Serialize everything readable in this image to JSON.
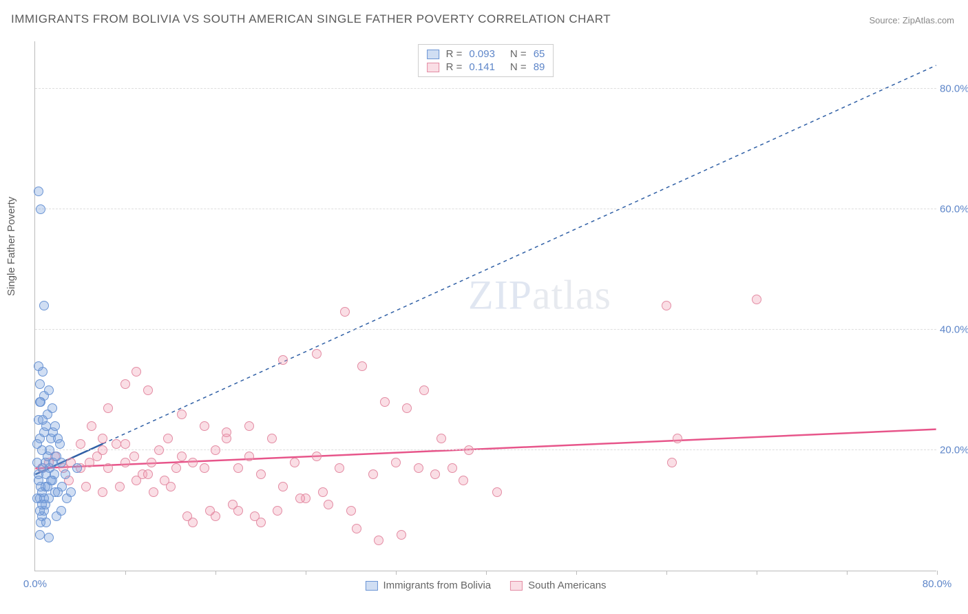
{
  "title": "IMMIGRANTS FROM BOLIVIA VS SOUTH AMERICAN SINGLE FATHER POVERTY CORRELATION CHART",
  "source": "Source: ZipAtlas.com",
  "ylabel": "Single Father Poverty",
  "watermark_a": "ZIP",
  "watermark_b": "atlas",
  "chart": {
    "type": "scatter",
    "xlim": [
      0,
      80
    ],
    "ylim": [
      0,
      88
    ],
    "background_color": "#ffffff",
    "grid_color": "#dddddd",
    "yticks": [
      20,
      40,
      60,
      80
    ],
    "xtick_marks": [
      8,
      16,
      24,
      32,
      40,
      48,
      56,
      64,
      72,
      80
    ],
    "xtick_labels": [
      {
        "pos": 0,
        "text": "0.0%"
      },
      {
        "pos": 80,
        "text": "80.0%"
      }
    ],
    "series": [
      {
        "name": "Immigrants from Bolivia",
        "marker_fill": "rgba(120,160,220,0.35)",
        "marker_stroke": "#6a94d4",
        "trend_color": "#2f5fa5",
        "trend_dash": "5,5",
        "trend": {
          "x1": 0,
          "y1": 16,
          "x2": 80,
          "y2": 84
        },
        "trend_solid_end_x": 6,
        "points": [
          [
            0.3,
            16
          ],
          [
            0.5,
            14
          ],
          [
            0.4,
            12
          ],
          [
            0.8,
            10
          ],
          [
            0.6,
            9
          ],
          [
            0.5,
            8
          ],
          [
            1.0,
            8
          ],
          [
            0.4,
            6
          ],
          [
            1.2,
            5.5
          ],
          [
            0.3,
            15
          ],
          [
            0.7,
            17
          ],
          [
            0.9,
            18
          ],
          [
            1.1,
            19
          ],
          [
            1.3,
            20
          ],
          [
            0.2,
            18
          ],
          [
            0.6,
            20
          ],
          [
            1.4,
            22
          ],
          [
            1.6,
            23
          ],
          [
            1.8,
            24
          ],
          [
            2.0,
            22
          ],
          [
            2.2,
            21
          ],
          [
            0.4,
            22
          ],
          [
            0.8,
            23
          ],
          [
            1.0,
            24
          ],
          [
            0.3,
            25
          ],
          [
            1.1,
            26
          ],
          [
            1.5,
            27
          ],
          [
            0.5,
            28
          ],
          [
            0.8,
            29
          ],
          [
            1.2,
            30
          ],
          [
            0.4,
            31
          ],
          [
            0.7,
            33
          ],
          [
            0.3,
            34
          ],
          [
            0.9,
            11
          ],
          [
            1.5,
            15
          ],
          [
            1.8,
            13
          ],
          [
            2.4,
            14
          ],
          [
            2.8,
            12
          ],
          [
            3.2,
            13
          ],
          [
            3.7,
            17
          ],
          [
            1.2,
            12
          ],
          [
            1.9,
            9
          ],
          [
            2.3,
            10
          ],
          [
            2.7,
            16
          ],
          [
            0.2,
            21
          ],
          [
            0.6,
            13
          ],
          [
            0.9,
            14
          ],
          [
            0.3,
            63
          ],
          [
            0.5,
            60
          ],
          [
            0.8,
            44
          ],
          [
            0.4,
            28
          ],
          [
            0.7,
            25
          ],
          [
            1.0,
            16
          ],
          [
            1.3,
            17
          ],
          [
            1.6,
            18
          ],
          [
            1.9,
            19
          ],
          [
            0.2,
            12
          ],
          [
            0.4,
            10
          ],
          [
            0.6,
            11
          ],
          [
            0.8,
            12
          ],
          [
            1.1,
            14
          ],
          [
            1.4,
            15
          ],
          [
            1.7,
            16
          ],
          [
            2.0,
            13
          ],
          [
            2.3,
            18
          ]
        ]
      },
      {
        "name": "South Americans",
        "marker_fill": "rgba(240,160,180,0.35)",
        "marker_stroke": "#e38ba3",
        "trend_color": "#e7558a",
        "trend_dash": "",
        "trend": {
          "x1": 0,
          "y1": 17,
          "x2": 80,
          "y2": 23.5
        },
        "trend_solid_end_x": 80,
        "points": [
          [
            0.6,
            17
          ],
          [
            1.2,
            18
          ],
          [
            1.8,
            19
          ],
          [
            2.5,
            17
          ],
          [
            3.2,
            18
          ],
          [
            4.0,
            17
          ],
          [
            4.8,
            18
          ],
          [
            5.5,
            19
          ],
          [
            6.0,
            22
          ],
          [
            6.5,
            17
          ],
          [
            7.2,
            21
          ],
          [
            8.0,
            18
          ],
          [
            8.8,
            19
          ],
          [
            9.5,
            16
          ],
          [
            10.3,
            18
          ],
          [
            11.0,
            20
          ],
          [
            11.8,
            22
          ],
          [
            12.5,
            17
          ],
          [
            3.0,
            15
          ],
          [
            4.5,
            14
          ],
          [
            6.0,
            13
          ],
          [
            7.5,
            14
          ],
          [
            9.0,
            15
          ],
          [
            10.5,
            13
          ],
          [
            12.0,
            14
          ],
          [
            5.0,
            24
          ],
          [
            6.5,
            27
          ],
          [
            8.0,
            31
          ],
          [
            9.0,
            33
          ],
          [
            10.0,
            16
          ],
          [
            11.5,
            15
          ],
          [
            13.0,
            19
          ],
          [
            14.0,
            18
          ],
          [
            15.0,
            17
          ],
          [
            16.0,
            20
          ],
          [
            17.0,
            22
          ],
          [
            18.0,
            17
          ],
          [
            19.0,
            19
          ],
          [
            20.0,
            16
          ],
          [
            22.0,
            14
          ],
          [
            24.0,
            12
          ],
          [
            26.0,
            11
          ],
          [
            28.0,
            10
          ],
          [
            30.0,
            16
          ],
          [
            14.0,
            8
          ],
          [
            16.0,
            9
          ],
          [
            18.0,
            10
          ],
          [
            20.0,
            8
          ],
          [
            22.0,
            35
          ],
          [
            29.0,
            34
          ],
          [
            31.0,
            28
          ],
          [
            33.0,
            27
          ],
          [
            34.5,
            30
          ],
          [
            37.0,
            17
          ],
          [
            38.0,
            15
          ],
          [
            28.5,
            7
          ],
          [
            30.5,
            5
          ],
          [
            32.5,
            6
          ],
          [
            19.0,
            24
          ],
          [
            21.0,
            22
          ],
          [
            23.0,
            18
          ],
          [
            25.0,
            19
          ],
          [
            27.0,
            17
          ],
          [
            13.0,
            26
          ],
          [
            15.0,
            24
          ],
          [
            17.0,
            23
          ],
          [
            13.5,
            9
          ],
          [
            15.5,
            10
          ],
          [
            17.5,
            11
          ],
          [
            19.5,
            9
          ],
          [
            21.5,
            10
          ],
          [
            23.5,
            12
          ],
          [
            25.5,
            13
          ],
          [
            36.0,
            22
          ],
          [
            25.0,
            36
          ],
          [
            10.0,
            30
          ],
          [
            4.0,
            21
          ],
          [
            6.0,
            20
          ],
          [
            8.0,
            21
          ],
          [
            41.0,
            13
          ],
          [
            56.0,
            44
          ],
          [
            57.0,
            22
          ],
          [
            56.5,
            18
          ],
          [
            64.0,
            45
          ],
          [
            32.0,
            18
          ],
          [
            34.0,
            17
          ],
          [
            35.5,
            16
          ],
          [
            38.5,
            20
          ],
          [
            27.5,
            43
          ]
        ]
      }
    ],
    "legend_top": [
      {
        "swatch_fill": "rgba(120,160,220,0.35)",
        "swatch_stroke": "#6a94d4",
        "r": "0.093",
        "n": "65"
      },
      {
        "swatch_fill": "rgba(240,160,180,0.35)",
        "swatch_stroke": "#e38ba3",
        "r": "0.141",
        "n": "89"
      }
    ],
    "legend_bottom": [
      {
        "swatch_fill": "rgba(120,160,220,0.35)",
        "swatch_stroke": "#6a94d4",
        "label": "Immigrants from Bolivia"
      },
      {
        "swatch_fill": "rgba(240,160,180,0.35)",
        "swatch_stroke": "#e38ba3",
        "label": "South Americans"
      }
    ]
  }
}
